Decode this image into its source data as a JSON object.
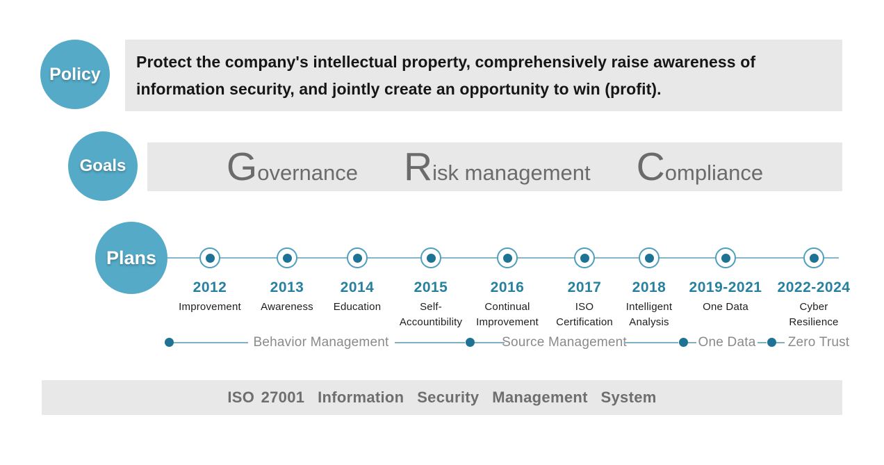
{
  "policy": {
    "label": "Policy",
    "line1": "Protect the company's intellectual property, comprehensively raise awareness of",
    "line2": "information security, and jointly create an opportunity to win (profit)."
  },
  "goals": {
    "label": "Goals",
    "items": [
      {
        "initial": "G",
        "rest": "overnance"
      },
      {
        "initial": "R",
        "rest": "isk management"
      },
      {
        "initial": "C",
        "rest": "ompliance"
      }
    ]
  },
  "plans": {
    "label": "Plans",
    "milestones": [
      {
        "year": "2012",
        "label": "Improvement"
      },
      {
        "year": "2013",
        "label": "Awareness"
      },
      {
        "year": "2014",
        "label": "Education"
      },
      {
        "year": "2015",
        "label": "Self-\nAccountibility"
      },
      {
        "year": "2016",
        "label": "Continual\nImprovement"
      },
      {
        "year": "2017",
        "label": "ISO\nCertification"
      },
      {
        "year": "2018",
        "label": "Intelligent\nAnalysis"
      },
      {
        "year": "2019-2021",
        "label": "One Data"
      },
      {
        "year": "2022-2024",
        "label": "Cyber\nResilience"
      }
    ],
    "phases": [
      {
        "label": "Behavior Management"
      },
      {
        "label": "Source Management"
      },
      {
        "label": "One Data"
      },
      {
        "label": "Zero Trust"
      }
    ]
  },
  "footer": {
    "text": "ISO 27001  Information  Security  Management  System"
  },
  "colors": {
    "bubble_teal": "#55aac7",
    "node_dot_teal": "#1e7293",
    "node_ring_teal": "#4e9fbe",
    "year_teal": "#27809f",
    "panel_gray": "#e8e8e8",
    "goal_text_gray": "#6b6b6b",
    "phase_text_gray": "#8a8a8a",
    "footer_text_gray": "#6e6e6e"
  }
}
